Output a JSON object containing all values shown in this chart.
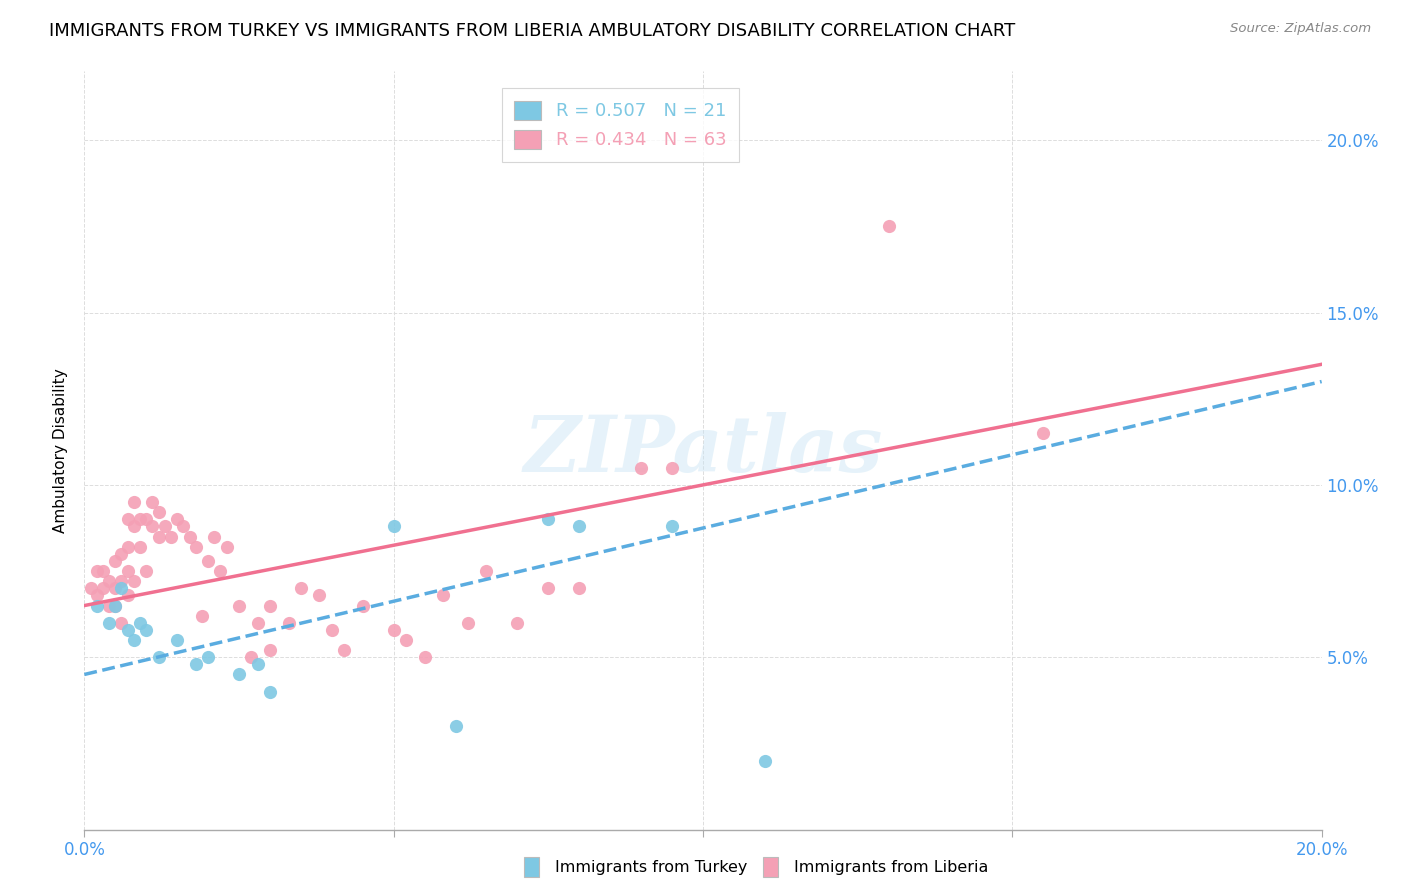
{
  "title": "IMMIGRANTS FROM TURKEY VS IMMIGRANTS FROM LIBERIA AMBULATORY DISABILITY CORRELATION CHART",
  "source": "Source: ZipAtlas.com",
  "ylabel": "Ambulatory Disability",
  "xlim": [
    0.0,
    0.2
  ],
  "ylim": [
    0.0,
    0.22
  ],
  "yticks": [
    0.05,
    0.1,
    0.15,
    0.2
  ],
  "ytick_labels": [
    "5.0%",
    "10.0%",
    "15.0%",
    "20.0%"
  ],
  "xticks": [
    0.0,
    0.05,
    0.1,
    0.15,
    0.2
  ],
  "xtick_labels_show": [
    "0.0%",
    "20.0%"
  ],
  "turkey_color": "#7ec8e3",
  "liberia_color": "#f4a0b5",
  "turkey_line_color": "#5aace0",
  "liberia_line_color": "#f07090",
  "turkey_R": 0.507,
  "turkey_N": 21,
  "liberia_R": 0.434,
  "liberia_N": 63,
  "turkey_scatter_x": [
    0.002,
    0.004,
    0.005,
    0.006,
    0.007,
    0.008,
    0.009,
    0.01,
    0.012,
    0.015,
    0.018,
    0.02,
    0.025,
    0.028,
    0.03,
    0.05,
    0.06,
    0.075,
    0.08,
    0.095,
    0.11
  ],
  "turkey_scatter_y": [
    0.065,
    0.06,
    0.065,
    0.07,
    0.058,
    0.055,
    0.06,
    0.058,
    0.05,
    0.055,
    0.048,
    0.05,
    0.045,
    0.048,
    0.04,
    0.088,
    0.03,
    0.09,
    0.088,
    0.088,
    0.02
  ],
  "liberia_scatter_x": [
    0.001,
    0.002,
    0.002,
    0.003,
    0.003,
    0.004,
    0.004,
    0.005,
    0.005,
    0.005,
    0.006,
    0.006,
    0.006,
    0.007,
    0.007,
    0.007,
    0.007,
    0.008,
    0.008,
    0.008,
    0.009,
    0.009,
    0.01,
    0.01,
    0.011,
    0.011,
    0.012,
    0.012,
    0.013,
    0.014,
    0.015,
    0.016,
    0.017,
    0.018,
    0.019,
    0.02,
    0.021,
    0.022,
    0.023,
    0.025,
    0.027,
    0.028,
    0.03,
    0.03,
    0.033,
    0.035,
    0.038,
    0.04,
    0.042,
    0.045,
    0.05,
    0.052,
    0.055,
    0.058,
    0.062,
    0.065,
    0.07,
    0.075,
    0.08,
    0.09,
    0.095,
    0.13,
    0.155
  ],
  "liberia_scatter_y": [
    0.07,
    0.068,
    0.075,
    0.07,
    0.075,
    0.065,
    0.072,
    0.065,
    0.07,
    0.078,
    0.06,
    0.072,
    0.08,
    0.068,
    0.075,
    0.082,
    0.09,
    0.072,
    0.088,
    0.095,
    0.082,
    0.09,
    0.075,
    0.09,
    0.088,
    0.095,
    0.085,
    0.092,
    0.088,
    0.085,
    0.09,
    0.088,
    0.085,
    0.082,
    0.062,
    0.078,
    0.085,
    0.075,
    0.082,
    0.065,
    0.05,
    0.06,
    0.052,
    0.065,
    0.06,
    0.07,
    0.068,
    0.058,
    0.052,
    0.065,
    0.058,
    0.055,
    0.05,
    0.068,
    0.06,
    0.075,
    0.06,
    0.07,
    0.07,
    0.105,
    0.105,
    0.175,
    0.115
  ],
  "watermark": "ZIPatlas",
  "background_color": "#ffffff",
  "grid_color": "#dddddd",
  "title_fontsize": 13,
  "axis_label_fontsize": 11,
  "tick_fontsize": 12,
  "tick_color": "#4499ee",
  "turkey_line_start_y": 0.045,
  "turkey_line_end_y": 0.13,
  "liberia_line_start_y": 0.065,
  "liberia_line_end_y": 0.135
}
